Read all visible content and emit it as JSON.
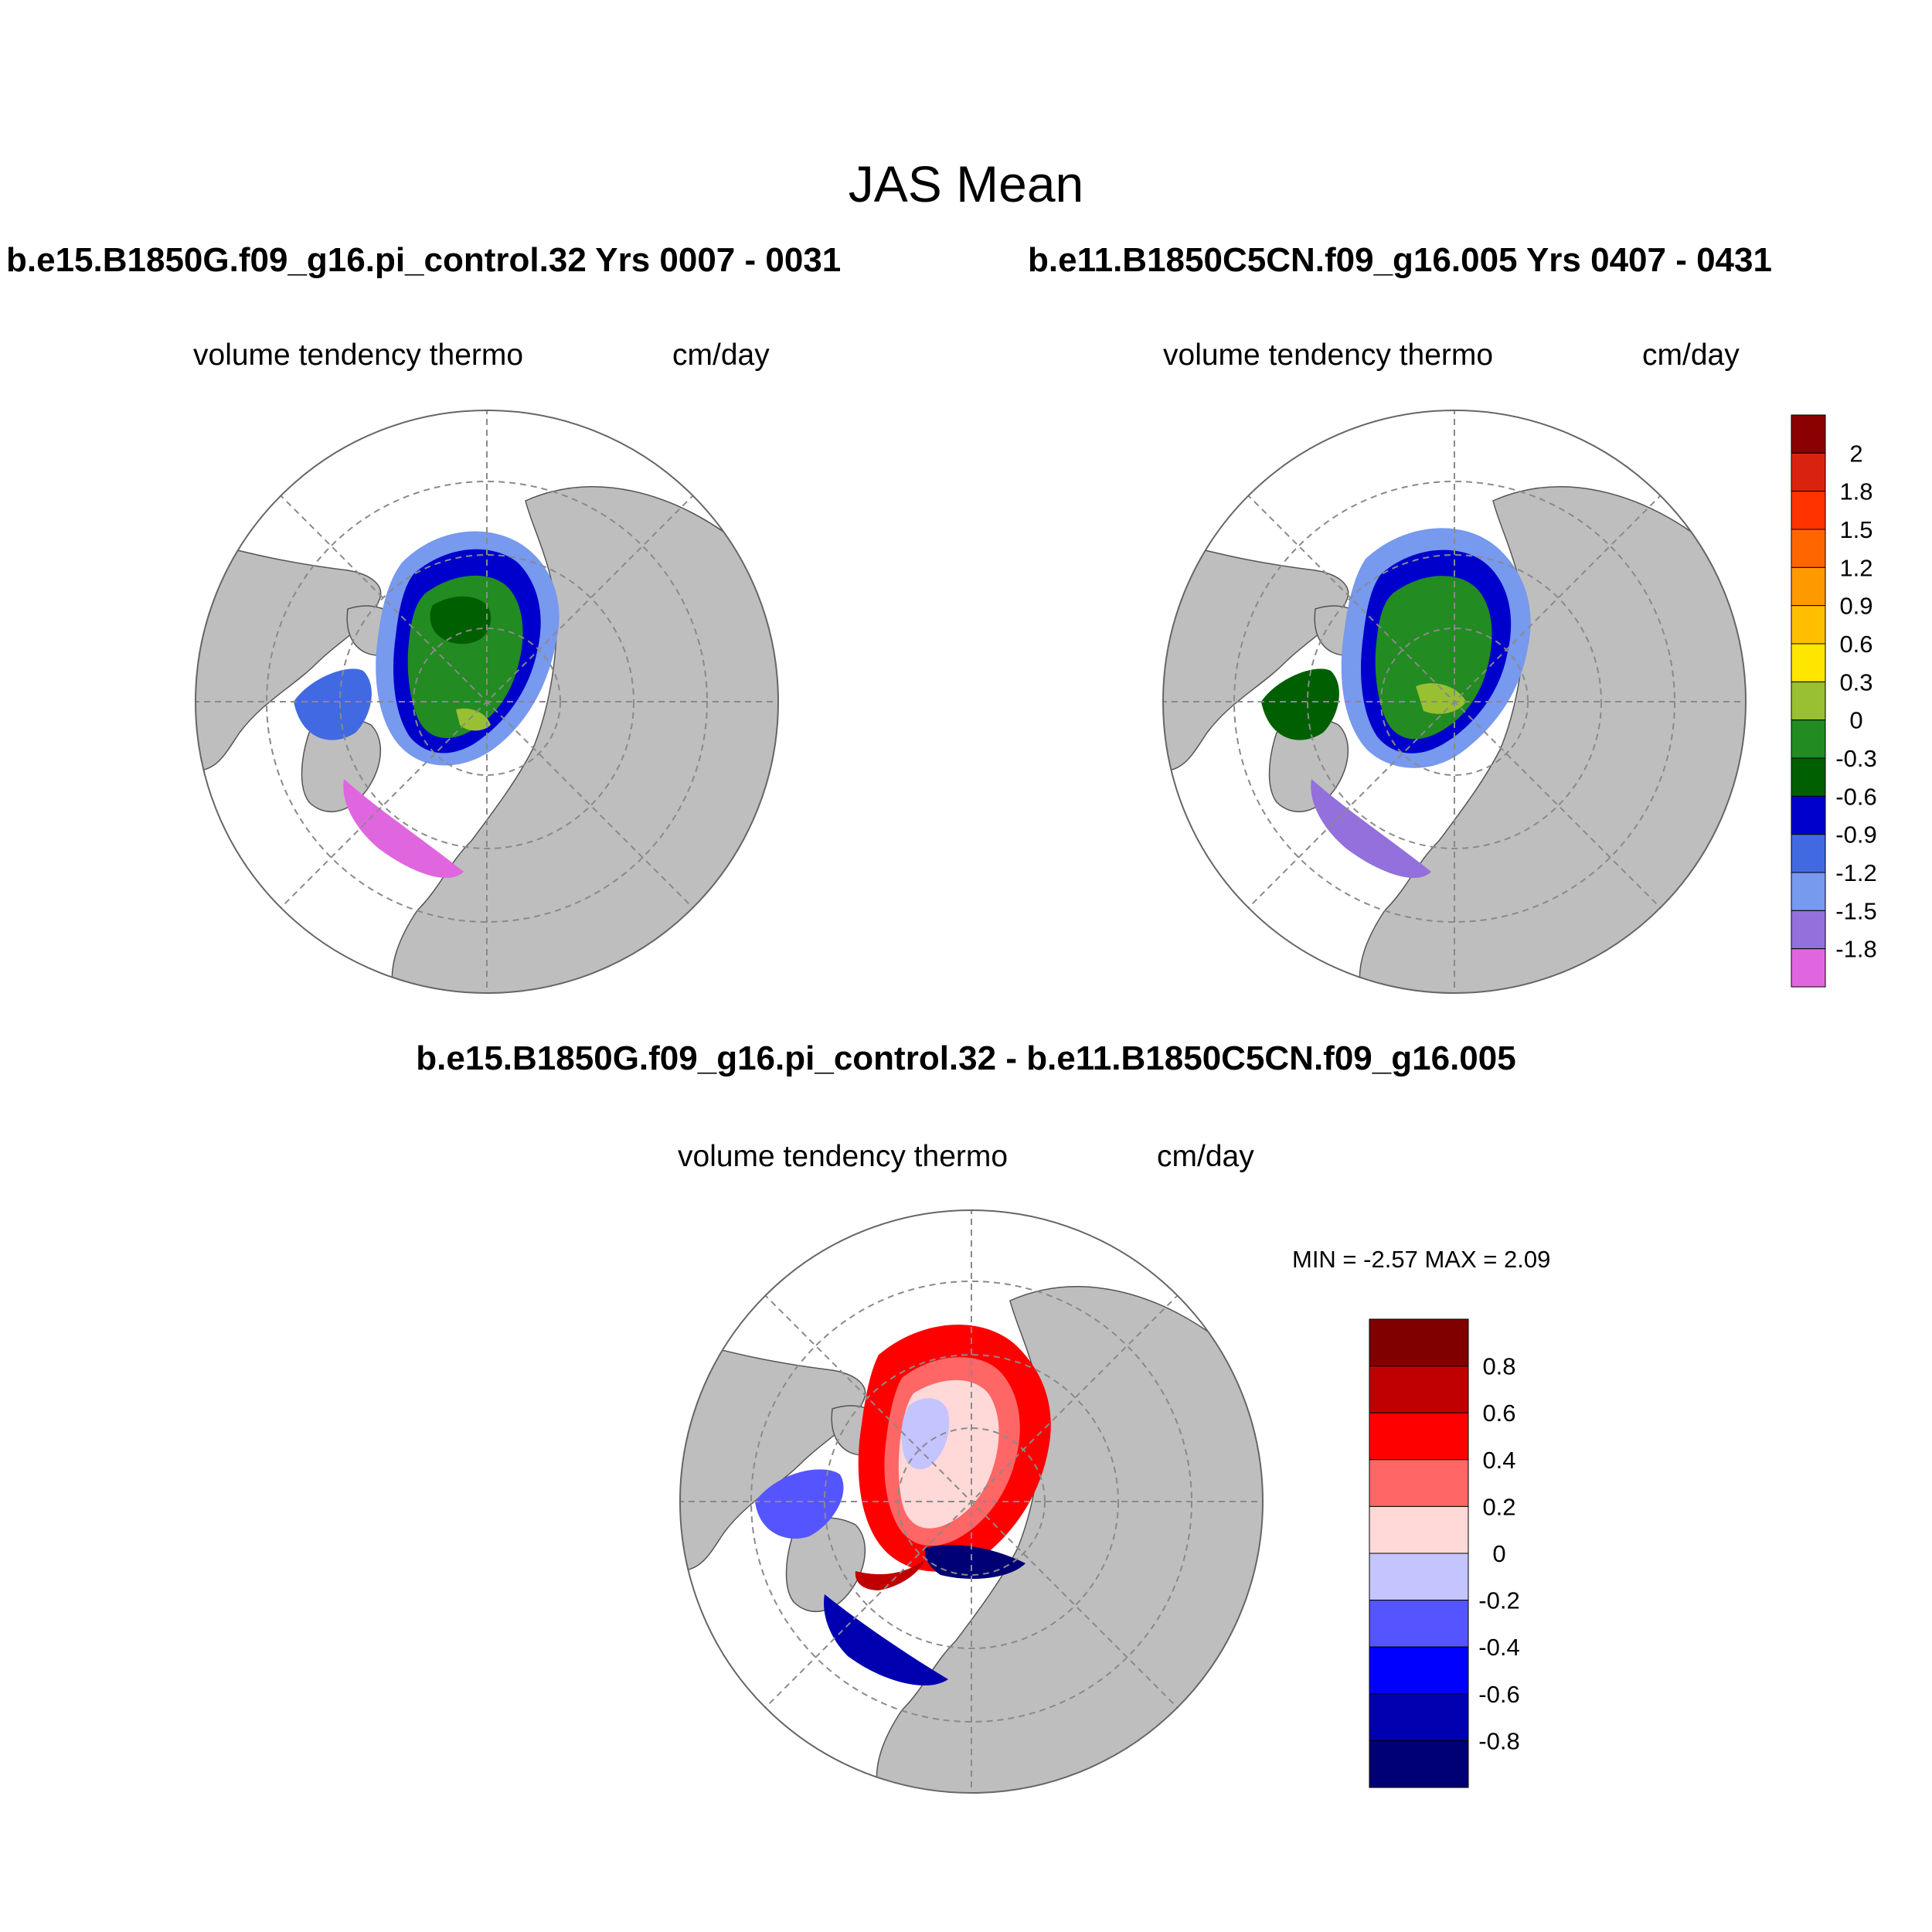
{
  "figure_title": "JAS Mean",
  "panels": {
    "left": {
      "title": "b.e15.B1850G.f09_g16.pi_control.32  Yrs 0007 - 0031",
      "variable": "volume tendency thermo",
      "units": "cm/day"
    },
    "right": {
      "title": "b.e11.B1850C5CN.f09_g16.005  Yrs 0407 - 0431",
      "variable": "volume tendency thermo",
      "units": "cm/day"
    },
    "diff": {
      "title": "b.e15.B1850G.f09_g16.pi_control.32 - b.e11.B1850C5CN.f09_g16.005",
      "variable": "volume tendency thermo",
      "units": "cm/day",
      "min_label": "MIN = ",
      "min_value": "-2.57",
      "max_label": "MAX = ",
      "max_value": "2.09"
    }
  },
  "colorbars": {
    "main": {
      "labels": [
        "2",
        "1.8",
        "1.5",
        "1.2",
        "0.9",
        "0.6",
        "0.3",
        "0",
        "-0.3",
        "-0.6",
        "-0.9",
        "-1.2",
        "-1.5",
        "-1.8"
      ],
      "colors": [
        "#8b0000",
        "#d9230f",
        "#ff3300",
        "#ff6600",
        "#ff9900",
        "#ffbf00",
        "#ffe600",
        "#99bf33",
        "#228b22",
        "#005f00",
        "#0000cd",
        "#4169e1",
        "#7799ee",
        "#9370db",
        "#e066e0"
      ]
    },
    "diff": {
      "labels": [
        "0.8",
        "0.6",
        "0.4",
        "0.2",
        "0",
        "-0.2",
        "-0.4",
        "-0.6",
        "-0.8"
      ],
      "colors": [
        "#800000",
        "#c00000",
        "#ff0000",
        "#ff6666",
        "#ffd8d8",
        "#c4c4ff",
        "#5555ff",
        "#0000ff",
        "#0000b0",
        "#000075"
      ]
    }
  },
  "colors": {
    "land": "#bebebe",
    "ocean": "#ffffff",
    "grid": "#8a8a8a"
  }
}
